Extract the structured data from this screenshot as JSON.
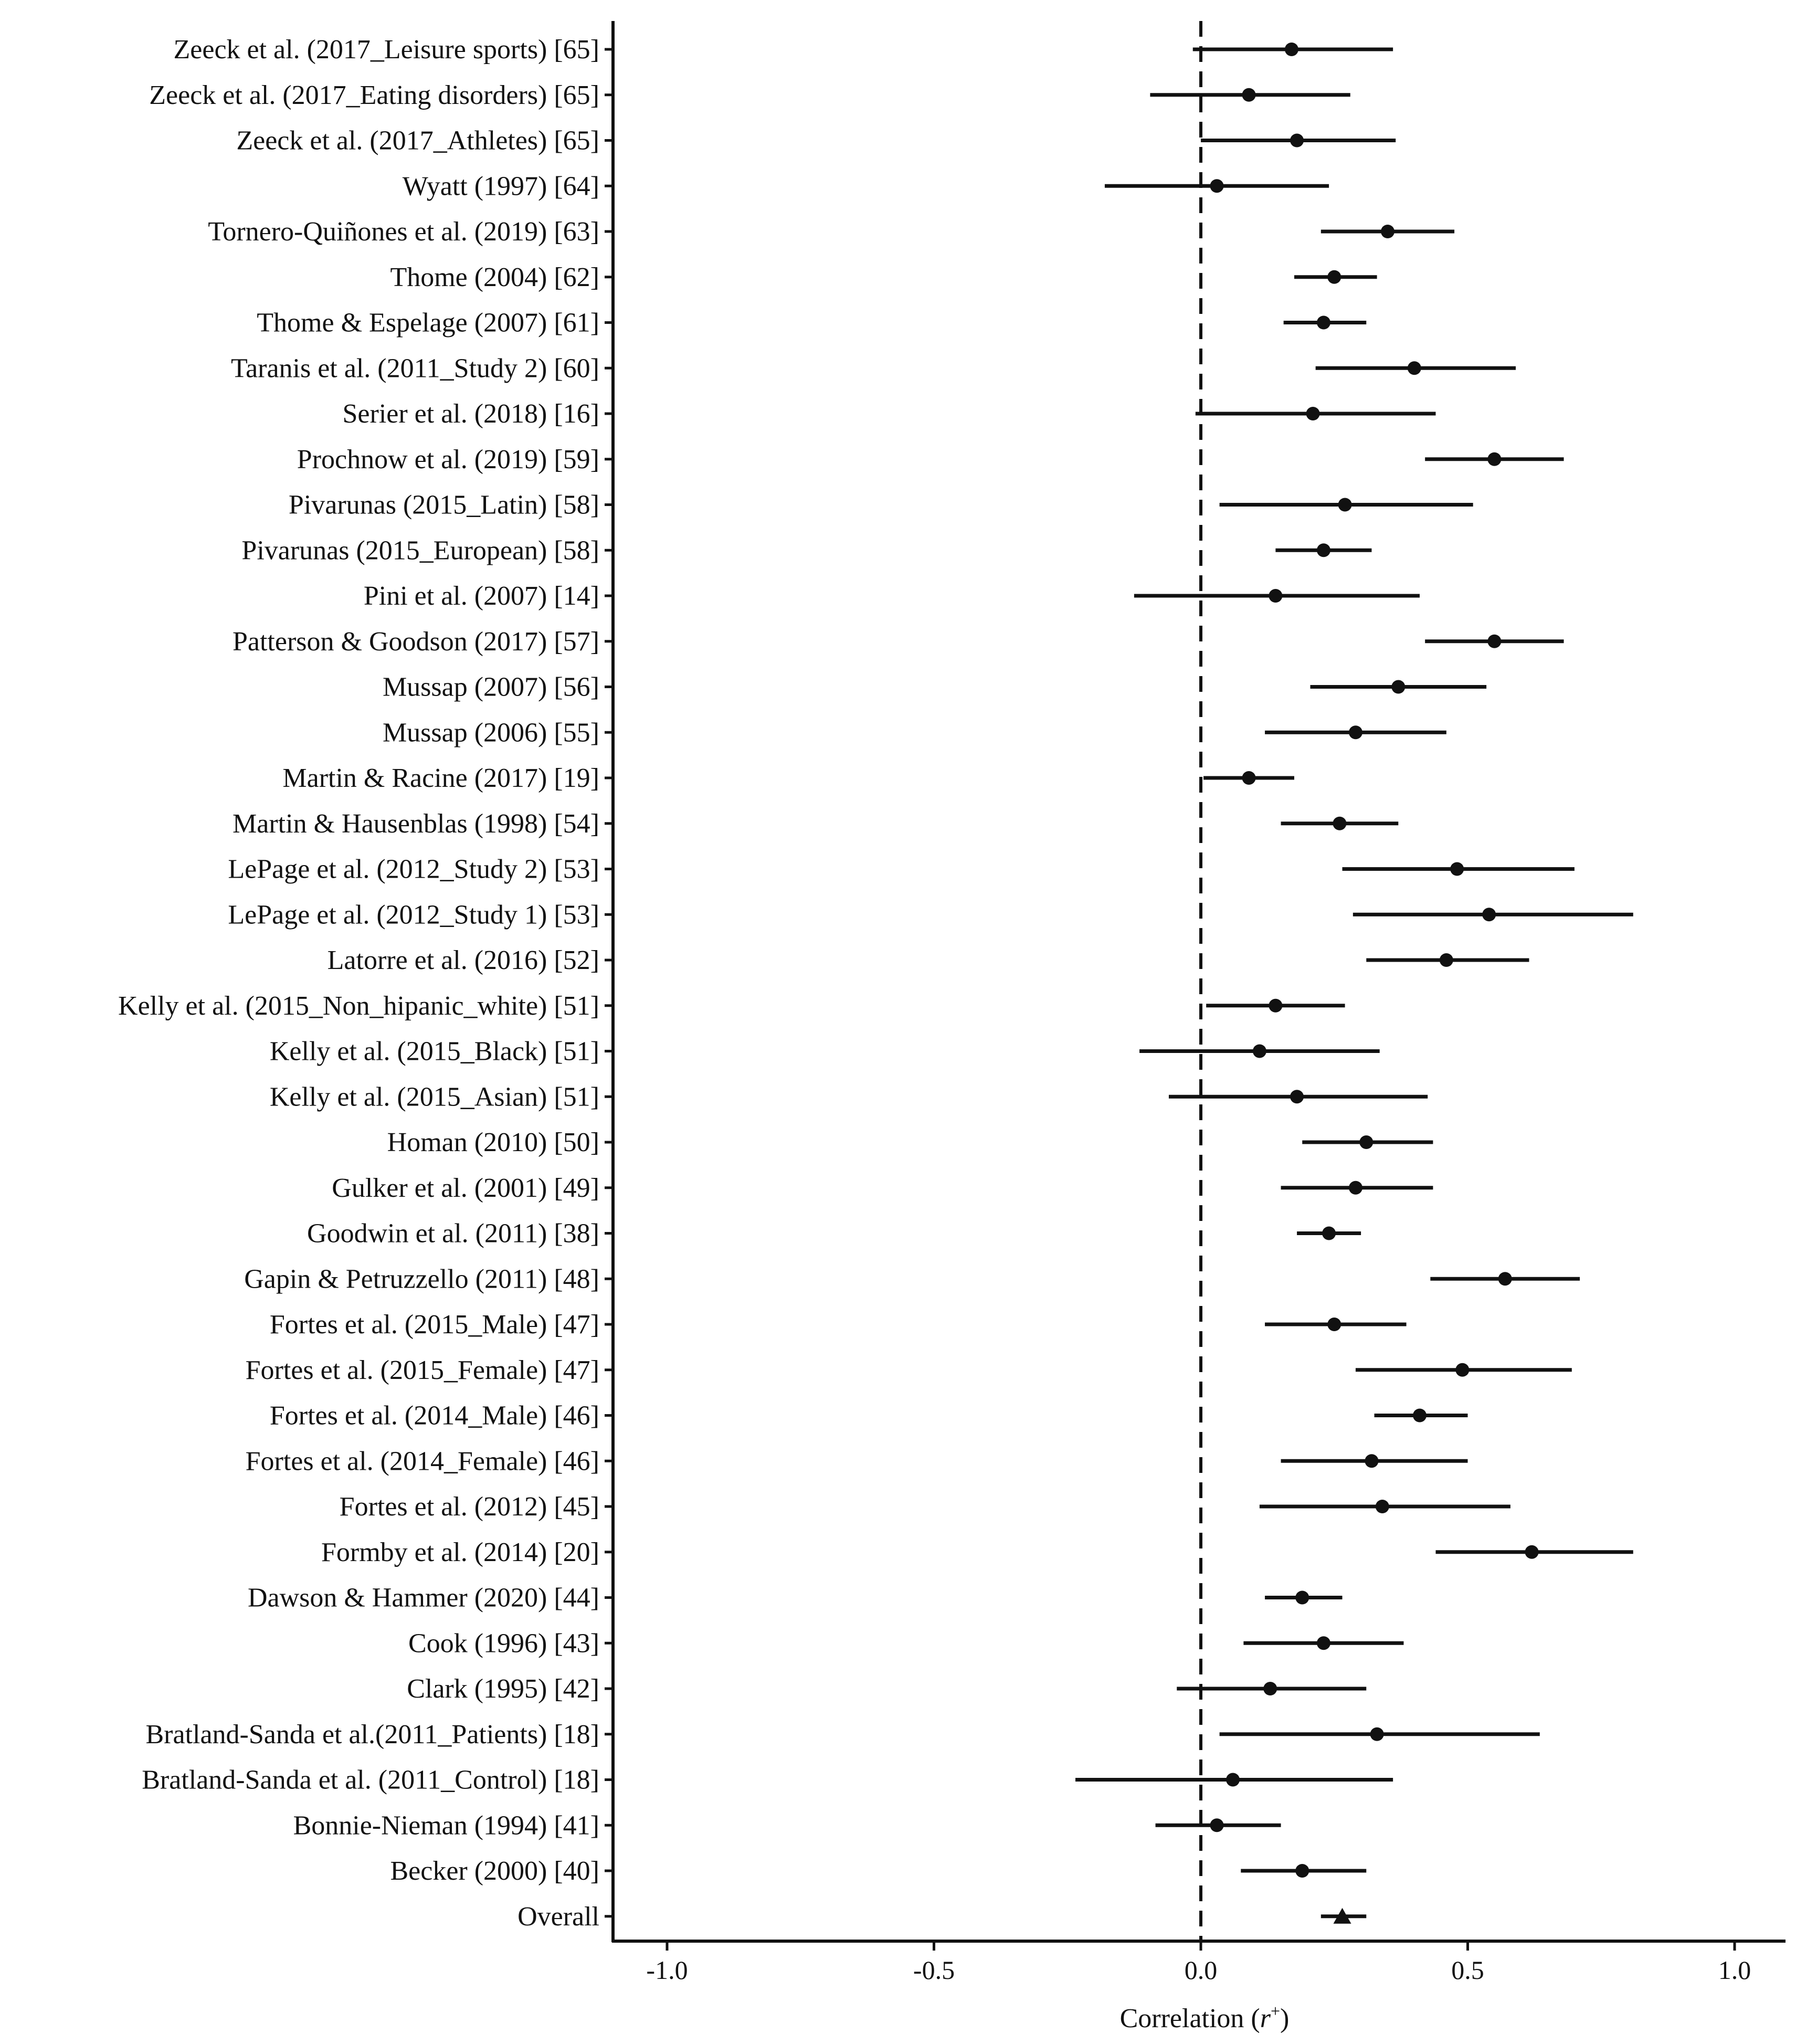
{
  "chart_data": {
    "type": "forest",
    "title": "",
    "xlabel": "Correlation (r⁺)",
    "xlabel_main": "Correlation (",
    "xlabel_symbol": "r",
    "xlabel_superscript": "+",
    "xlabel_close": ")",
    "ylabel": "",
    "xlim": [
      -1.1,
      1.1
    ],
    "x_ticks": [
      -1.0,
      -0.5,
      0.0,
      0.5,
      1.0
    ],
    "x_tick_labels": [
      "-1.0",
      "-0.5",
      "0.0",
      "0.5",
      "1.0"
    ],
    "reference_line": 0.0,
    "grid": false,
    "studies": [
      {
        "label": "Zeeck et al. (2017_Leisure sports) [65]",
        "estimate": 0.17,
        "lower": -0.015,
        "upper": 0.36
      },
      {
        "label": "Zeeck et al. (2017_Eating disorders) [65]",
        "estimate": 0.09,
        "lower": -0.095,
        "upper": 0.28
      },
      {
        "label": "Zeeck et al. (2017_Athletes) [65]",
        "estimate": 0.18,
        "lower": 0.0,
        "upper": 0.365
      },
      {
        "label": "Wyatt (1997) [64]",
        "estimate": 0.03,
        "lower": -0.18,
        "upper": 0.24
      },
      {
        "label": "Tornero-Quiñones et al. (2019) [63]",
        "estimate": 0.35,
        "lower": 0.225,
        "upper": 0.475
      },
      {
        "label": "Thome (2004) [62]",
        "estimate": 0.25,
        "lower": 0.175,
        "upper": 0.33
      },
      {
        "label": "Thome & Espelage (2007) [61]",
        "estimate": 0.23,
        "lower": 0.155,
        "upper": 0.31
      },
      {
        "label": "Taranis et al. (2011_Study 2) [60]",
        "estimate": 0.4,
        "lower": 0.215,
        "upper": 0.59
      },
      {
        "label": "Serier et al. (2018) [16]",
        "estimate": 0.21,
        "lower": -0.01,
        "upper": 0.44
      },
      {
        "label": "Prochnow et al. (2019) [59]",
        "estimate": 0.55,
        "lower": 0.42,
        "upper": 0.68
      },
      {
        "label": "Pivarunas (2015_Latin) [58]",
        "estimate": 0.27,
        "lower": 0.035,
        "upper": 0.51
      },
      {
        "label": "Pivarunas (2015_European) [58]",
        "estimate": 0.23,
        "lower": 0.14,
        "upper": 0.32
      },
      {
        "label": "Pini et al. (2007) [14]",
        "estimate": 0.14,
        "lower": -0.125,
        "upper": 0.41
      },
      {
        "label": "Patterson & Goodson (2017) [57]",
        "estimate": 0.55,
        "lower": 0.42,
        "upper": 0.68
      },
      {
        "label": "Mussap (2007) [56]",
        "estimate": 0.37,
        "lower": 0.205,
        "upper": 0.535
      },
      {
        "label": "Mussap (2006) [55]",
        "estimate": 0.29,
        "lower": 0.12,
        "upper": 0.46
      },
      {
        "label": "Martin & Racine (2017) [19]",
        "estimate": 0.09,
        "lower": 0.005,
        "upper": 0.175
      },
      {
        "label": "Martin & Hausenblas (1998) [54]",
        "estimate": 0.26,
        "lower": 0.15,
        "upper": 0.37
      },
      {
        "label": "LePage et al. (2012_Study 2) [53]",
        "estimate": 0.48,
        "lower": 0.265,
        "upper": 0.7
      },
      {
        "label": "LePage et al. (2012_Study 1) [53]",
        "estimate": 0.54,
        "lower": 0.285,
        "upper": 0.81
      },
      {
        "label": "Latorre et al. (2016) [52]",
        "estimate": 0.46,
        "lower": 0.31,
        "upper": 0.615
      },
      {
        "label": "Kelly et al. (2015_Non_hipanic_white) [51]",
        "estimate": 0.14,
        "lower": 0.01,
        "upper": 0.27
      },
      {
        "label": "Kelly et al. (2015_Black) [51]",
        "estimate": 0.11,
        "lower": -0.115,
        "upper": 0.335
      },
      {
        "label": "Kelly et al. (2015_Asian) [51]",
        "estimate": 0.18,
        "lower": -0.06,
        "upper": 0.425
      },
      {
        "label": "Homan (2010) [50]",
        "estimate": 0.31,
        "lower": 0.19,
        "upper": 0.435
      },
      {
        "label": "Gulker et al. (2001) [49]",
        "estimate": 0.29,
        "lower": 0.15,
        "upper": 0.435
      },
      {
        "label": "Goodwin et al. (2011) [38]",
        "estimate": 0.24,
        "lower": 0.18,
        "upper": 0.3
      },
      {
        "label": "Gapin & Petruzzello (2011) [48]",
        "estimate": 0.57,
        "lower": 0.43,
        "upper": 0.71
      },
      {
        "label": "Fortes et al. (2015_Male) [47]",
        "estimate": 0.25,
        "lower": 0.12,
        "upper": 0.385
      },
      {
        "label": "Fortes et al. (2015_Female) [47]",
        "estimate": 0.49,
        "lower": 0.29,
        "upper": 0.695
      },
      {
        "label": "Fortes et al. (2014_Male) [46]",
        "estimate": 0.41,
        "lower": 0.325,
        "upper": 0.5
      },
      {
        "label": "Fortes et al. (2014_Female) [46]",
        "estimate": 0.32,
        "lower": 0.15,
        "upper": 0.5
      },
      {
        "label": "Fortes et al. (2012) [45]",
        "estimate": 0.34,
        "lower": 0.11,
        "upper": 0.58
      },
      {
        "label": "Formby et al. (2014) [20]",
        "estimate": 0.62,
        "lower": 0.44,
        "upper": 0.81
      },
      {
        "label": "Dawson & Hammer (2020) [44]",
        "estimate": 0.19,
        "lower": 0.12,
        "upper": 0.265
      },
      {
        "label": "Cook (1996) [43]",
        "estimate": 0.23,
        "lower": 0.08,
        "upper": 0.38
      },
      {
        "label": "Clark (1995) [42]",
        "estimate": 0.13,
        "lower": -0.045,
        "upper": 0.31
      },
      {
        "label": "Bratland-Sanda et al.(2011_Patients) [18]",
        "estimate": 0.33,
        "lower": 0.035,
        "upper": 0.635
      },
      {
        "label": "Bratland-Sanda et al. (2011_Control) [18]",
        "estimate": 0.06,
        "lower": -0.235,
        "upper": 0.36
      },
      {
        "label": "Bonnie-Nieman (1994) [41]",
        "estimate": 0.03,
        "lower": -0.085,
        "upper": 0.15
      },
      {
        "label": "Becker (2000) [40]",
        "estimate": 0.19,
        "lower": 0.075,
        "upper": 0.31
      }
    ],
    "overall": {
      "label": "Overall",
      "estimate": 0.265,
      "lower": 0.225,
      "upper": 0.31,
      "marker": "triangle"
    }
  }
}
